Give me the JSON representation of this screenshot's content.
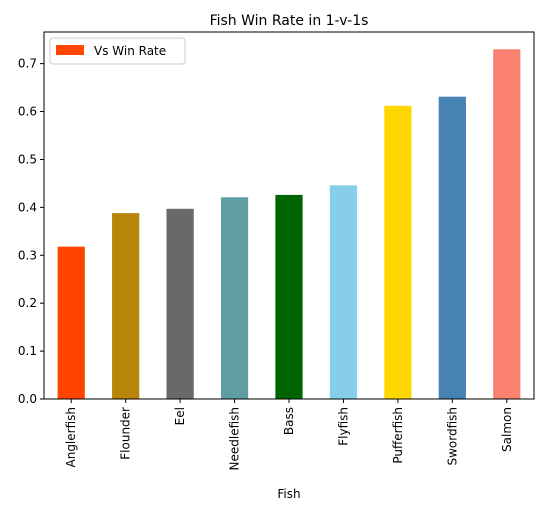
{
  "chart_data": {
    "type": "bar",
    "title": "Fish Win Rate in 1-v-1s",
    "xlabel": "Fish",
    "ylabel": "",
    "categories": [
      "Anglerfish",
      "Flounder",
      "Eel",
      "Needlefish",
      "Bass",
      "Flyfish",
      "Pufferfish",
      "Swordfish",
      "Salmon"
    ],
    "series": [
      {
        "name": "Vs Win Rate",
        "values": [
          0.318,
          0.388,
          0.397,
          0.421,
          0.426,
          0.446,
          0.612,
          0.631,
          0.73
        ],
        "colors": [
          "#ff4500",
          "#b8860b",
          "#696969",
          "#5f9ea0",
          "#006400",
          "#87ceeb",
          "#ffd700",
          "#4682b4",
          "#fa8072"
        ]
      }
    ],
    "ylim": [
      0,
      0.766
    ],
    "yticks": [
      0.0,
      0.1,
      0.2,
      0.3,
      0.4,
      0.5,
      0.6,
      0.7
    ],
    "ytick_labels": [
      "0.0",
      "0.1",
      "0.2",
      "0.3",
      "0.4",
      "0.5",
      "0.6",
      "0.7"
    ],
    "legend": {
      "placement": "top-left",
      "swatch_color": "#ff4500"
    },
    "grid": false
  }
}
